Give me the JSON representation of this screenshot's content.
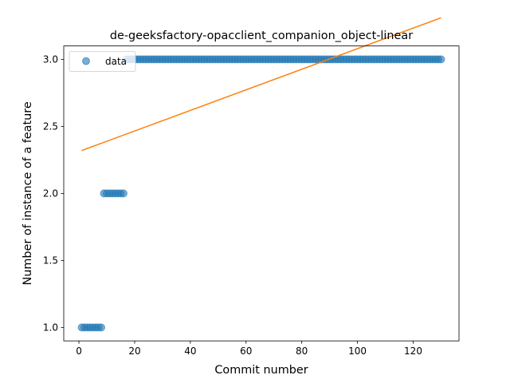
{
  "chart_data": {
    "type": "scatter",
    "title": "de-geeksfactory-opacclient_companion_object-linear",
    "xlabel": "Commit number",
    "ylabel": "Number of instance of a feature",
    "xlim": [
      -5.45,
      136.45
    ],
    "ylim": [
      0.9,
      3.1
    ],
    "xticks": [
      0,
      20,
      40,
      60,
      80,
      100,
      120
    ],
    "yticks": [
      1.0,
      1.5,
      2.0,
      2.5,
      3.0
    ],
    "xtick_labels": [
      "0",
      "20",
      "40",
      "60",
      "80",
      "100",
      "120"
    ],
    "ytick_labels": [
      "1.0",
      "1.5",
      "2.0",
      "2.5",
      "3.0"
    ],
    "legend": {
      "placement": "upper-left",
      "entries": [
        "data"
      ]
    },
    "grid": false,
    "series": [
      {
        "name": "data",
        "kind": "scatter",
        "color": "#1f77b4",
        "alpha": 0.6,
        "segments": [
          {
            "x_from": 1,
            "x_to": 8,
            "y": 1
          },
          {
            "x_from": 9,
            "x_to": 16,
            "y": 2
          },
          {
            "x_from": 17,
            "x_to": 130,
            "y": 3
          }
        ]
      },
      {
        "kind": "line",
        "color": "#ff7f0e",
        "x": [
          1,
          130
        ],
        "y": [
          2.32,
          3.31
        ]
      }
    ]
  }
}
